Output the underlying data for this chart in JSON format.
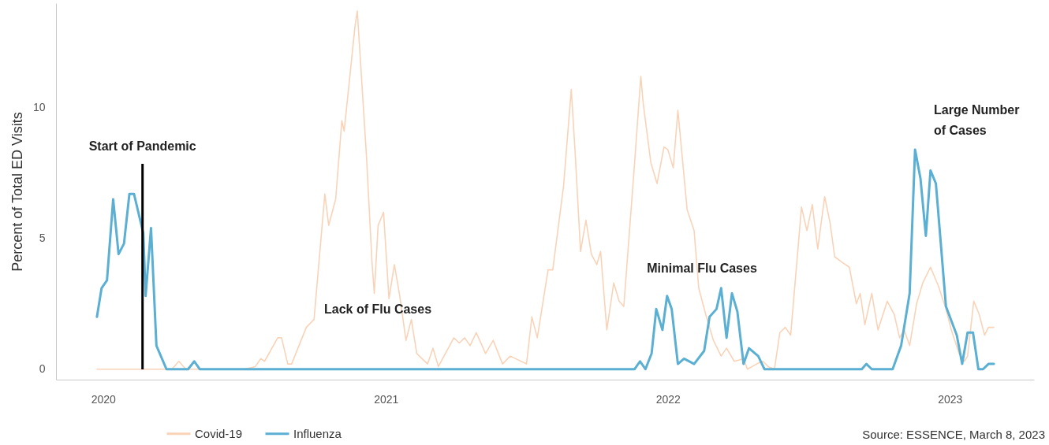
{
  "chart_data": {
    "type": "line",
    "ylabel": "Percent of Total ED Visits",
    "xlim": [
      "2019-11-01",
      "2023-04-20"
    ],
    "ylim": [
      -0.4,
      14
    ],
    "xticks": [
      "2020",
      "2021",
      "2022",
      "2023"
    ],
    "yticks": [
      0,
      5,
      10
    ],
    "legend": "bottom",
    "series": [
      {
        "name": "Covid-19",
        "color": "#f9d3b8",
        "x": [
          "2019-12-24",
          "2020-03-30",
          "2020-04-08",
          "2020-04-17",
          "2020-07-02",
          "2020-07-16",
          "2020-07-23",
          "2020-07-28",
          "2020-08-14",
          "2020-08-19",
          "2020-08-27",
          "2020-09-01",
          "2020-09-20",
          "2020-09-30",
          "2020-10-14",
          "2020-10-19",
          "2020-10-28",
          "2020-11-05",
          "2020-11-08",
          "2020-11-22",
          "2020-11-25",
          "2020-12-07",
          "2020-12-14",
          "2020-12-17",
          "2020-12-22",
          "2020-12-29",
          "2021-01-05",
          "2021-01-12",
          "2021-01-19",
          "2021-01-27",
          "2021-02-03",
          "2021-02-10",
          "2021-02-24",
          "2021-03-03",
          "2021-03-10",
          "2021-03-30",
          "2021-04-06",
          "2021-04-13",
          "2021-04-20",
          "2021-04-28",
          "2021-05-10",
          "2021-05-20",
          "2021-06-01",
          "2021-06-11",
          "2021-07-02",
          "2021-07-09",
          "2021-07-16",
          "2021-07-30",
          "2021-08-05",
          "2021-08-19",
          "2021-08-29",
          "2021-09-03",
          "2021-09-10",
          "2021-09-17",
          "2021-09-24",
          "2021-10-01",
          "2021-10-06",
          "2021-10-14",
          "2021-10-23",
          "2021-10-30",
          "2021-11-05",
          "2021-11-19",
          "2021-11-27",
          "2021-11-30",
          "2021-12-10",
          "2021-12-18",
          "2021-12-27",
          "2022-01-01",
          "2022-01-08",
          "2022-01-14",
          "2022-01-26",
          "2022-02-04",
          "2022-02-10",
          "2022-02-19",
          "2022-03-01",
          "2022-03-11",
          "2022-03-18",
          "2022-03-28",
          "2022-04-09",
          "2022-04-14",
          "2022-04-26",
          "2022-05-04",
          "2022-05-11",
          "2022-05-19",
          "2022-05-26",
          "2022-06-02",
          "2022-06-09",
          "2022-06-23",
          "2022-06-30",
          "2022-07-07",
          "2022-07-14",
          "2022-07-23",
          "2022-07-30",
          "2022-08-05",
          "2022-08-14",
          "2022-08-24",
          "2022-09-02",
          "2022-09-07",
          "2022-09-13",
          "2022-09-22",
          "2022-09-30",
          "2022-10-12",
          "2022-10-21",
          "2022-10-28",
          "2022-11-03",
          "2022-11-10",
          "2022-11-19",
          "2022-11-27",
          "2022-12-07",
          "2022-12-17",
          "2022-12-27",
          "2023-01-03",
          "2023-01-13",
          "2023-01-20",
          "2023-01-24",
          "2023-02-01",
          "2023-02-08",
          "2023-02-15",
          "2023-02-20",
          "2023-02-27"
        ],
        "values": [
          0,
          0,
          0.3,
          0,
          0,
          0.1,
          0.4,
          0.3,
          1.2,
          1.2,
          0.2,
          0.2,
          1.6,
          1.9,
          6.7,
          5.5,
          6.5,
          9.5,
          9.1,
          13.1,
          13.7,
          8.1,
          4.1,
          2.9,
          5.5,
          6.0,
          2.7,
          4.0,
          2.8,
          1.1,
          1.9,
          0.6,
          0.2,
          0.8,
          0.1,
          1.2,
          1.0,
          1.2,
          0.9,
          1.4,
          0.6,
          1.1,
          0.2,
          0.5,
          0.2,
          2.0,
          1.2,
          3.8,
          3.8,
          7.0,
          10.7,
          8.3,
          4.5,
          5.7,
          4.4,
          4.0,
          4.5,
          1.5,
          3.3,
          2.6,
          2.4,
          7.9,
          11.2,
          10.2,
          7.9,
          7.1,
          8.5,
          8.4,
          7.7,
          9.9,
          6.1,
          5.3,
          3.1,
          2.1,
          1.1,
          0.5,
          0.8,
          0.3,
          0.4,
          0,
          0.2,
          0.3,
          0.1,
          0,
          1.4,
          1.6,
          1.3,
          6.2,
          5.3,
          6.3,
          4.6,
          6.6,
          5.6,
          4.3,
          4.1,
          3.9,
          2.5,
          2.9,
          1.7,
          2.9,
          1.5,
          2.6,
          2.1,
          1.2,
          1.5,
          0.9,
          2.5,
          3.3,
          3.9,
          3.2,
          2.3,
          1.5,
          0.6,
          0.3,
          0.5,
          2.6,
          2.1,
          1.3,
          1.6,
          1.6
        ]
      },
      {
        "name": "Influenza",
        "color": "#5aafd3",
        "x": [
          "2019-12-24",
          "2019-12-30",
          "2020-01-06",
          "2020-01-14",
          "2020-01-21",
          "2020-01-28",
          "2020-02-04",
          "2020-02-10",
          "2020-02-22",
          "2020-02-25",
          "2020-03-03",
          "2020-03-10",
          "2020-03-23",
          "2020-04-20",
          "2020-04-28",
          "2020-05-05",
          "2021-11-19",
          "2021-11-26",
          "2021-12-03",
          "2021-12-11",
          "2021-12-17",
          "2021-12-25",
          "2021-12-31",
          "2022-01-06",
          "2022-01-14",
          "2022-01-22",
          "2022-02-04",
          "2022-02-17",
          "2022-02-24",
          "2022-03-05",
          "2022-03-11",
          "2022-03-18",
          "2022-03-25",
          "2022-04-01",
          "2022-04-09",
          "2022-04-16",
          "2022-04-28",
          "2022-05-06",
          "2022-09-09",
          "2022-09-15",
          "2022-09-22",
          "2022-10-19",
          "2022-10-30",
          "2022-11-10",
          "2022-11-17",
          "2022-11-24",
          "2022-12-01",
          "2022-12-07",
          "2022-12-14",
          "2022-12-27",
          "2023-01-10",
          "2023-01-17",
          "2023-01-24",
          "2023-01-31",
          "2023-02-07",
          "2023-02-13",
          "2023-02-20",
          "2023-02-27"
        ],
        "values": [
          2.0,
          3.1,
          3.4,
          6.5,
          4.4,
          4.8,
          6.7,
          6.7,
          5.2,
          2.8,
          5.4,
          0.9,
          0,
          0,
          0.3,
          0,
          0,
          0.3,
          0,
          0.6,
          2.3,
          1.5,
          2.8,
          2.3,
          0.2,
          0.4,
          0.2,
          0.7,
          2.0,
          2.3,
          3.1,
          1.2,
          2.9,
          2.2,
          0.2,
          0.8,
          0.5,
          0,
          0,
          0.2,
          0,
          0,
          0.9,
          2.9,
          8.4,
          7.3,
          5.1,
          7.6,
          7.1,
          2.4,
          1.3,
          0.2,
          1.4,
          1.4,
          0,
          0,
          0.2,
          0.2
        ]
      }
    ],
    "ref_lines": [
      {
        "axis": "x",
        "value": "2020-02-21",
        "label": "Start of Pandemic",
        "color": "#000000"
      }
    ],
    "annotations": [
      "Lack of Flu Cases",
      "Minimal Flu Cases",
      "Large Number\nof Cases",
      "Source: ESSENCE, March 8, 2023"
    ]
  }
}
